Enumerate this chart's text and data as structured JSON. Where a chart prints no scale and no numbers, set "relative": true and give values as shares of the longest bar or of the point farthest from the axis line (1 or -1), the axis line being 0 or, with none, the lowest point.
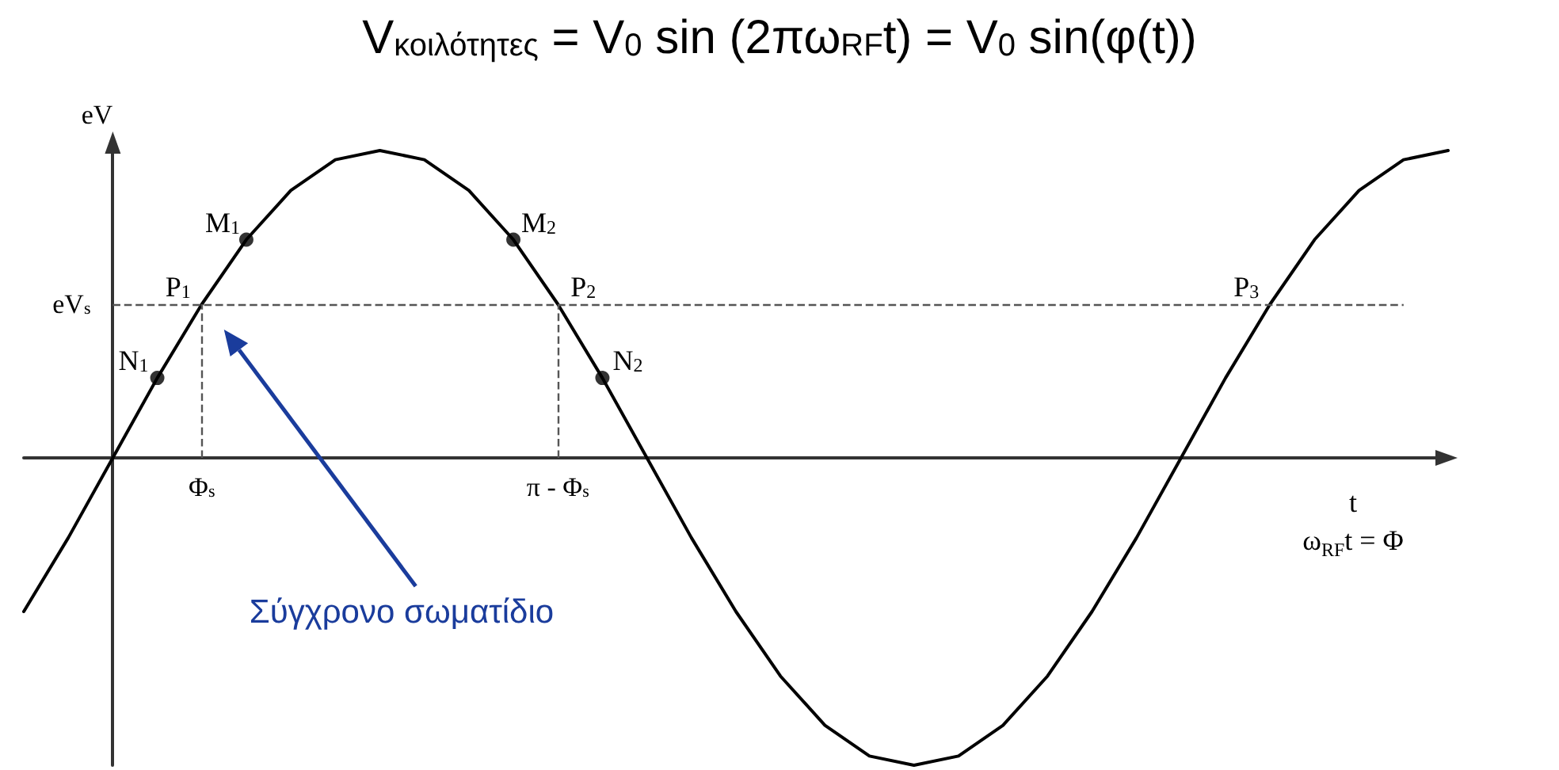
{
  "chart_data": {
    "type": "line",
    "title": "V$_{κοιλότητες}$ = V$_{0}$ sin (2πω$_{RF}$t) = V$_{0}$ sin(φ(t))",
    "ylabel": "eV",
    "xlabel": "t\nω$_{RF}$t = Φ",
    "relative": true,
    "categories": [
      null,
      null,
      null,
      null,
      "Φ$_{s}$",
      null,
      null,
      null,
      null,
      null,
      null,
      null,
      "π - Φ$_{s}$",
      null,
      null,
      null,
      null,
      null,
      null,
      null,
      null,
      null,
      null,
      null,
      null,
      null,
      null,
      null,
      null,
      null,
      null,
      null,
      null
    ],
    "series": [
      {
        "color": "#000000",
        "marker": "none",
        "values": [
          -0.5,
          -0.26,
          0,
          0.26,
          0.5,
          0.71,
          0.87,
          0.97,
          1,
          0.97,
          0.87,
          0.71,
          0.5,
          0.26,
          0,
          -0.26,
          -0.5,
          -0.71,
          -0.87,
          -0.97,
          -1,
          -0.97,
          -0.87,
          -0.71,
          -0.5,
          -0.26,
          0,
          0.26,
          0.5,
          0.71,
          0.87,
          0.97,
          1
        ]
      },
      {
        "type": "scatter",
        "name": "N$_{1}$",
        "color": "#000000",
        "marker": "circle",
        "values": [
          null,
          null,
          null,
          0.26,
          null,
          null,
          null,
          null,
          null,
          null,
          null,
          null,
          null,
          null,
          null,
          null,
          null,
          null,
          null,
          null,
          null,
          null,
          null,
          null,
          null,
          null,
          null,
          null,
          null,
          null,
          null,
          null,
          null
        ]
      },
      {
        "type": "scatter",
        "name": "M$_{1}$",
        "color": "#000000",
        "marker": "circle",
        "values": [
          null,
          null,
          null,
          null,
          null,
          0.71,
          null,
          null,
          null,
          null,
          null,
          null,
          null,
          null,
          null,
          null,
          null,
          null,
          null,
          null,
          null,
          null,
          null,
          null,
          null,
          null,
          null,
          null,
          null,
          null,
          null,
          null,
          null
        ]
      },
      {
        "type": "scatter",
        "name": "M$_{2}$",
        "color": "#000000",
        "marker": "circle",
        "values": [
          null,
          null,
          null,
          null,
          null,
          null,
          null,
          null,
          null,
          null,
          null,
          0.71,
          null,
          null,
          null,
          null,
          null,
          null,
          null,
          null,
          null,
          null,
          null,
          null,
          null,
          null,
          null,
          null,
          null,
          null,
          null,
          null,
          null
        ]
      },
      {
        "type": "scatter",
        "name": "N$_{2}$",
        "color": "#000000",
        "marker": "circle",
        "values": [
          null,
          null,
          null,
          null,
          null,
          null,
          null,
          null,
          null,
          null,
          null,
          null,
          null,
          0.26,
          null,
          null,
          null,
          null,
          null,
          null,
          null,
          null,
          null,
          null,
          null,
          null,
          null,
          null,
          null,
          null,
          null,
          null,
          null
        ]
      }
    ],
    "ref_lines": [
      {
        "axis": "y",
        "value": 0.5,
        "label": "eV$_{s}$",
        "color": "#555555",
        "line_style": "dashed"
      },
      {
        "axis": "x",
        "value": "Φ$_{s}$",
        "color": "#555555",
        "line_style": "dashed"
      },
      {
        "axis": "x",
        "value": "π - Φ$_{s}$",
        "color": "#555555",
        "line_style": "dashed"
      }
    ],
    "annotations": [
      {
        "text": "P$_{1}$",
        "y": 0.5
      },
      {
        "text": "P$_{2}$",
        "y": 0.5
      },
      {
        "text": "P$_{3}$",
        "y": 0.5
      },
      "Σύγχρονο σωματίδιο"
    ]
  }
}
